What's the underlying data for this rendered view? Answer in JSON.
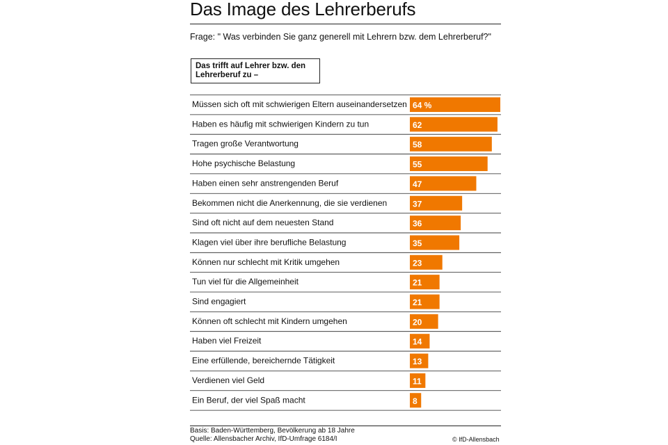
{
  "title": "Das Image des Lehrerberufs",
  "question": "Frage: \" Was verbinden Sie ganz generell mit Lehrern bzw. dem Lehrerberuf?\"",
  "box_label": "Das trifft auf Lehrer bzw. den Lehrerberuf zu –",
  "footer": {
    "basis": "Basis: Baden-Württemberg, Bevölkerung ab 18 Jahre",
    "source": "Quelle: Allensbacher Archiv, IfD-Umfrage 6184/I",
    "copyright": "© IfD-Allensbach"
  },
  "colors": {
    "bar": "#F07800",
    "bar_text": "#ffffff",
    "rule": "#222222"
  },
  "chart_data": {
    "type": "bar",
    "orientation": "horizontal",
    "unit_label": "%",
    "categories": [
      "Müssen sich oft mit schwierigen Eltern auseinandersetzen",
      "Haben es häufig mit schwierigen Kindern zu tun",
      "Tragen große Verantwortung",
      "Hohe psychische Belastung",
      "Haben einen sehr anstrengenden Beruf",
      "Bekommen nicht die Anerkennung, die sie verdienen",
      "Sind oft nicht auf dem neuesten Stand",
      "Klagen viel über ihre berufliche Belastung",
      "Können nur schlecht mit Kritik umgehen",
      "Tun viel für die Allgemeinheit",
      "Sind engagiert",
      "Können oft schlecht mit Kindern umgehen",
      "Haben viel Freizeit",
      "Eine erfüllende, bereichernde Tätigkeit",
      "Verdienen viel Geld",
      "Ein Beruf, der viel Spaß macht"
    ],
    "values": [
      64,
      62,
      58,
      55,
      47,
      37,
      36,
      35,
      23,
      21,
      21,
      20,
      14,
      13,
      11,
      8
    ],
    "value_labels": [
      "64 %",
      "62",
      "58",
      "55",
      "47",
      "37",
      "36",
      "35",
      "23",
      "21",
      "21",
      "20",
      "14",
      "13",
      "11",
      "8"
    ],
    "xlim": [
      0,
      64
    ],
    "grid": false,
    "legend": "none"
  }
}
